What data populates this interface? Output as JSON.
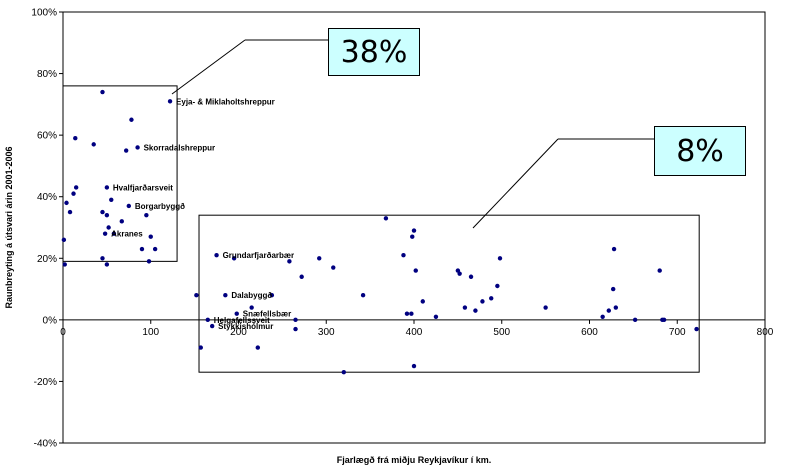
{
  "chart_data": {
    "type": "scatter",
    "title": "",
    "xlabel": "Fjarlægð frá miðju Reykjavíkur í km.",
    "ylabel": "Raunbreyting á útsvari árin 2001-2006",
    "xlim": [
      0,
      800
    ],
    "ylim": [
      -40,
      100
    ],
    "x_ticks": [
      "0",
      "100",
      "200",
      "300",
      "400",
      "500",
      "600",
      "700",
      "800"
    ],
    "y_ticks": [
      "-40%",
      "-20%",
      "0%",
      "20%",
      "40%",
      "60%",
      "80%",
      "100%"
    ],
    "grid": false,
    "legend": "none",
    "marker_color": "#000080",
    "series": [
      {
        "values": [
          {
            "x": 1,
            "y": 26
          },
          {
            "x": 2,
            "y": 18
          },
          {
            "x": 4,
            "y": 38
          },
          {
            "x": 8,
            "y": 35
          },
          {
            "x": 12,
            "y": 41
          },
          {
            "x": 14,
            "y": 59
          },
          {
            "x": 15,
            "y": 43
          },
          {
            "x": 35,
            "y": 57
          },
          {
            "x": 45,
            "y": 74
          },
          {
            "x": 45,
            "y": 35
          },
          {
            "x": 45,
            "y": 20
          },
          {
            "x": 48,
            "y": 28
          },
          {
            "x": 50,
            "y": 43
          },
          {
            "x": 50,
            "y": 34
          },
          {
            "x": 50,
            "y": 18
          },
          {
            "x": 52,
            "y": 30
          },
          {
            "x": 55,
            "y": 39
          },
          {
            "x": 58,
            "y": 28
          },
          {
            "x": 67,
            "y": 32
          },
          {
            "x": 72,
            "y": 55
          },
          {
            "x": 75,
            "y": 37
          },
          {
            "x": 78,
            "y": 65
          },
          {
            "x": 85,
            "y": 56
          },
          {
            "x": 90,
            "y": 23
          },
          {
            "x": 95,
            "y": 34
          },
          {
            "x": 98,
            "y": 19
          },
          {
            "x": 100,
            "y": 27
          },
          {
            "x": 105,
            "y": 23
          },
          {
            "x": 122,
            "y": 71
          },
          {
            "x": 152,
            "y": 8
          },
          {
            "x": 157,
            "y": -9
          },
          {
            "x": 165,
            "y": 0
          },
          {
            "x": 170,
            "y": -2
          },
          {
            "x": 175,
            "y": 21
          },
          {
            "x": 185,
            "y": 8
          },
          {
            "x": 195,
            "y": 20
          },
          {
            "x": 198,
            "y": 2
          },
          {
            "x": 215,
            "y": 4
          },
          {
            "x": 222,
            "y": -9
          },
          {
            "x": 238,
            "y": 8
          },
          {
            "x": 258,
            "y": 19
          },
          {
            "x": 265,
            "y": 0
          },
          {
            "x": 265,
            "y": -3
          },
          {
            "x": 272,
            "y": 14
          },
          {
            "x": 292,
            "y": 20
          },
          {
            "x": 308,
            "y": 17
          },
          {
            "x": 320,
            "y": -17
          },
          {
            "x": 342,
            "y": 8
          },
          {
            "x": 368,
            "y": 33
          },
          {
            "x": 388,
            "y": 21
          },
          {
            "x": 392,
            "y": 2
          },
          {
            "x": 397,
            "y": 2
          },
          {
            "x": 398,
            "y": 27
          },
          {
            "x": 400,
            "y": 29
          },
          {
            "x": 400,
            "y": -15
          },
          {
            "x": 402,
            "y": 16
          },
          {
            "x": 410,
            "y": 6
          },
          {
            "x": 425,
            "y": 1
          },
          {
            "x": 450,
            "y": 16
          },
          {
            "x": 452,
            "y": 15
          },
          {
            "x": 458,
            "y": 4
          },
          {
            "x": 465,
            "y": 14
          },
          {
            "x": 470,
            "y": 3
          },
          {
            "x": 478,
            "y": 6
          },
          {
            "x": 488,
            "y": 7
          },
          {
            "x": 495,
            "y": 11
          },
          {
            "x": 498,
            "y": 20
          },
          {
            "x": 550,
            "y": 4
          },
          {
            "x": 615,
            "y": 1
          },
          {
            "x": 622,
            "y": 3
          },
          {
            "x": 627,
            "y": 10
          },
          {
            "x": 628,
            "y": 23
          },
          {
            "x": 630,
            "y": 4
          },
          {
            "x": 652,
            "y": 0
          },
          {
            "x": 680,
            "y": 16
          },
          {
            "x": 683,
            "y": 0
          },
          {
            "x": 685,
            "y": 0
          },
          {
            "x": 722,
            "y": -3
          }
        ]
      }
    ],
    "annotations": [
      {
        "text": "Eyja- & Miklaholtshreppur",
        "x": 122,
        "y": 71
      },
      {
        "text": "Skorradalshreppur",
        "x": 85,
        "y": 56
      },
      {
        "text": "Hvalfjarðarsveit",
        "x": 50,
        "y": 43
      },
      {
        "text": "Borgarbyggð",
        "x": 75,
        "y": 37
      },
      {
        "text": "Akranes",
        "x": 48,
        "y": 28
      },
      {
        "text": "Grundarfjarðarbær",
        "x": 175,
        "y": 21
      },
      {
        "text": "Dalabyggð",
        "x": 185,
        "y": 8
      },
      {
        "text": "Snæfellsbær",
        "x": 198,
        "y": 2
      },
      {
        "text": "Helgafellssveit",
        "x": 165,
        "y": 0
      },
      {
        "text": "Stykkishólmur",
        "x": 170,
        "y": -2
      }
    ],
    "regions": [
      {
        "x": [
          0,
          130
        ],
        "y": [
          19,
          76
        ],
        "callout": "38%"
      },
      {
        "x": [
          155,
          725
        ],
        "y": [
          -17,
          34
        ],
        "callout": "8%"
      }
    ]
  }
}
